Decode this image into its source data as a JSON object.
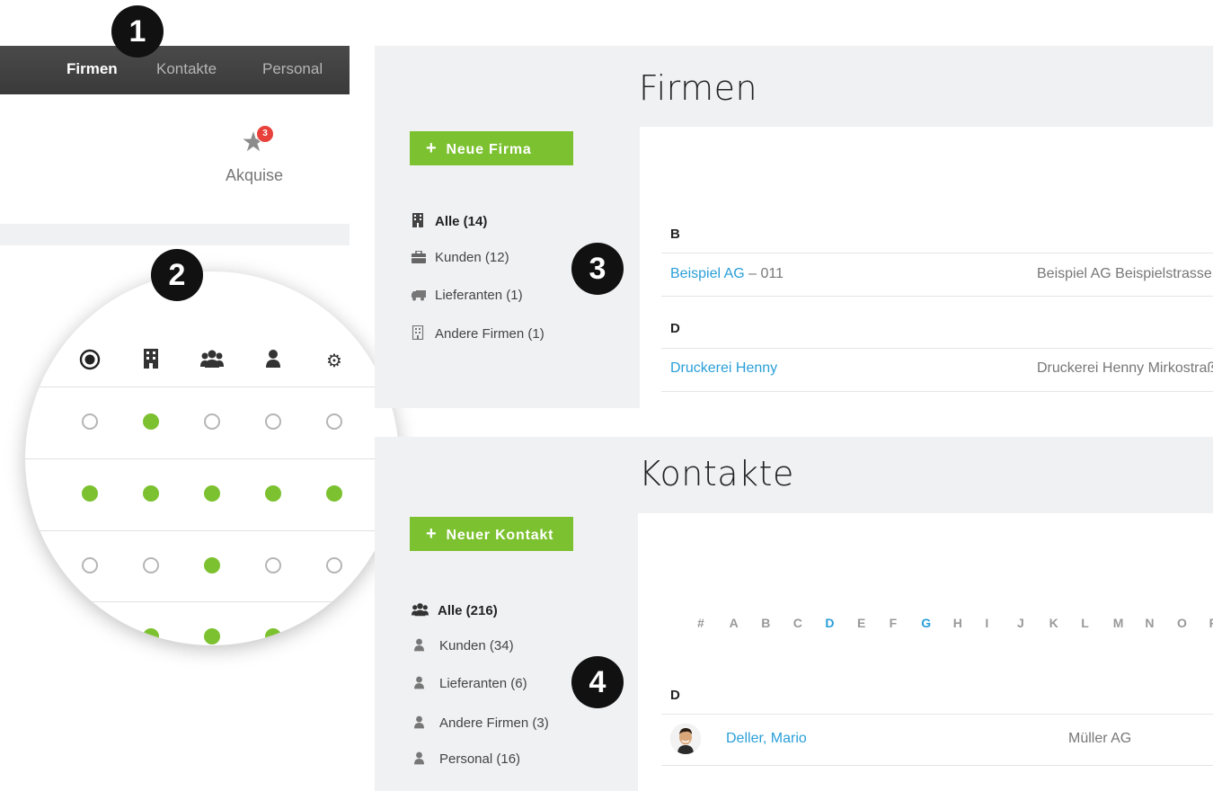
{
  "markers": [
    "1",
    "2",
    "3",
    "4"
  ],
  "topnav": {
    "items": [
      {
        "label": "Firmen",
        "active": true
      },
      {
        "label": "Kontakte",
        "active": false
      },
      {
        "label": "Personal",
        "active": false
      }
    ]
  },
  "akquise": {
    "label": "Akquise",
    "badge": "3",
    "icon": "star-icon"
  },
  "magnifier": {
    "icons": [
      "eye-icon",
      "building-icon",
      "users-icon",
      "user-icon",
      "gear-icon"
    ],
    "rows": [
      [
        false,
        true,
        false,
        false,
        false
      ],
      [
        true,
        true,
        true,
        true,
        true
      ],
      [
        false,
        false,
        true,
        false,
        false
      ],
      [
        true,
        true,
        true,
        true,
        true
      ]
    ]
  },
  "firmen": {
    "title": "Firmen",
    "new_button": "Neue Firma",
    "sidebar": [
      {
        "label": "Alle (14)",
        "icon": "building-icon",
        "active": true
      },
      {
        "label": "Kunden (12)",
        "icon": "briefcase-icon",
        "active": false
      },
      {
        "label": "Lieferanten (1)",
        "icon": "truck-icon",
        "active": false
      },
      {
        "label": "Andere Firmen (1)",
        "icon": "building-outline-icon",
        "active": false
      }
    ],
    "groups": [
      {
        "letter": "B",
        "name": "Beispiel AG",
        "suffix": " – 011",
        "address": "Beispiel AG Beispielstrasse"
      },
      {
        "letter": "D",
        "name": "Druckerei Henny",
        "suffix": "",
        "address": "Druckerei Henny Mirkostraß"
      }
    ]
  },
  "kontakte": {
    "title": "Kontakte",
    "new_button": "Neuer Kontakt",
    "sidebar": [
      {
        "label": "Alle (216)",
        "icon": "users-icon",
        "active": true
      },
      {
        "label": "Kunden (34)",
        "icon": "user-icon",
        "active": false
      },
      {
        "label": "Lieferanten (6)",
        "icon": "user-icon",
        "active": false
      },
      {
        "label": "Andere Firmen (3)",
        "icon": "user-icon",
        "active": false
      },
      {
        "label": "Personal (16)",
        "icon": "user-icon",
        "active": false
      }
    ],
    "alphabet": [
      {
        "l": "#",
        "active": false
      },
      {
        "l": "A",
        "active": false
      },
      {
        "l": "B",
        "active": false
      },
      {
        "l": "C",
        "active": false
      },
      {
        "l": "D",
        "active": true
      },
      {
        "l": "E",
        "active": false
      },
      {
        "l": "F",
        "active": false
      },
      {
        "l": "G",
        "active": true
      },
      {
        "l": "H",
        "active": false
      },
      {
        "l": "I",
        "active": false
      },
      {
        "l": "J",
        "active": false
      },
      {
        "l": "K",
        "active": false
      },
      {
        "l": "L",
        "active": false
      },
      {
        "l": "M",
        "active": false
      },
      {
        "l": "N",
        "active": false
      },
      {
        "l": "O",
        "active": false
      },
      {
        "l": "P",
        "active": false
      }
    ],
    "group_letter": "D",
    "contact": {
      "name": "Deller, Mario",
      "company": "Müller AG"
    }
  }
}
